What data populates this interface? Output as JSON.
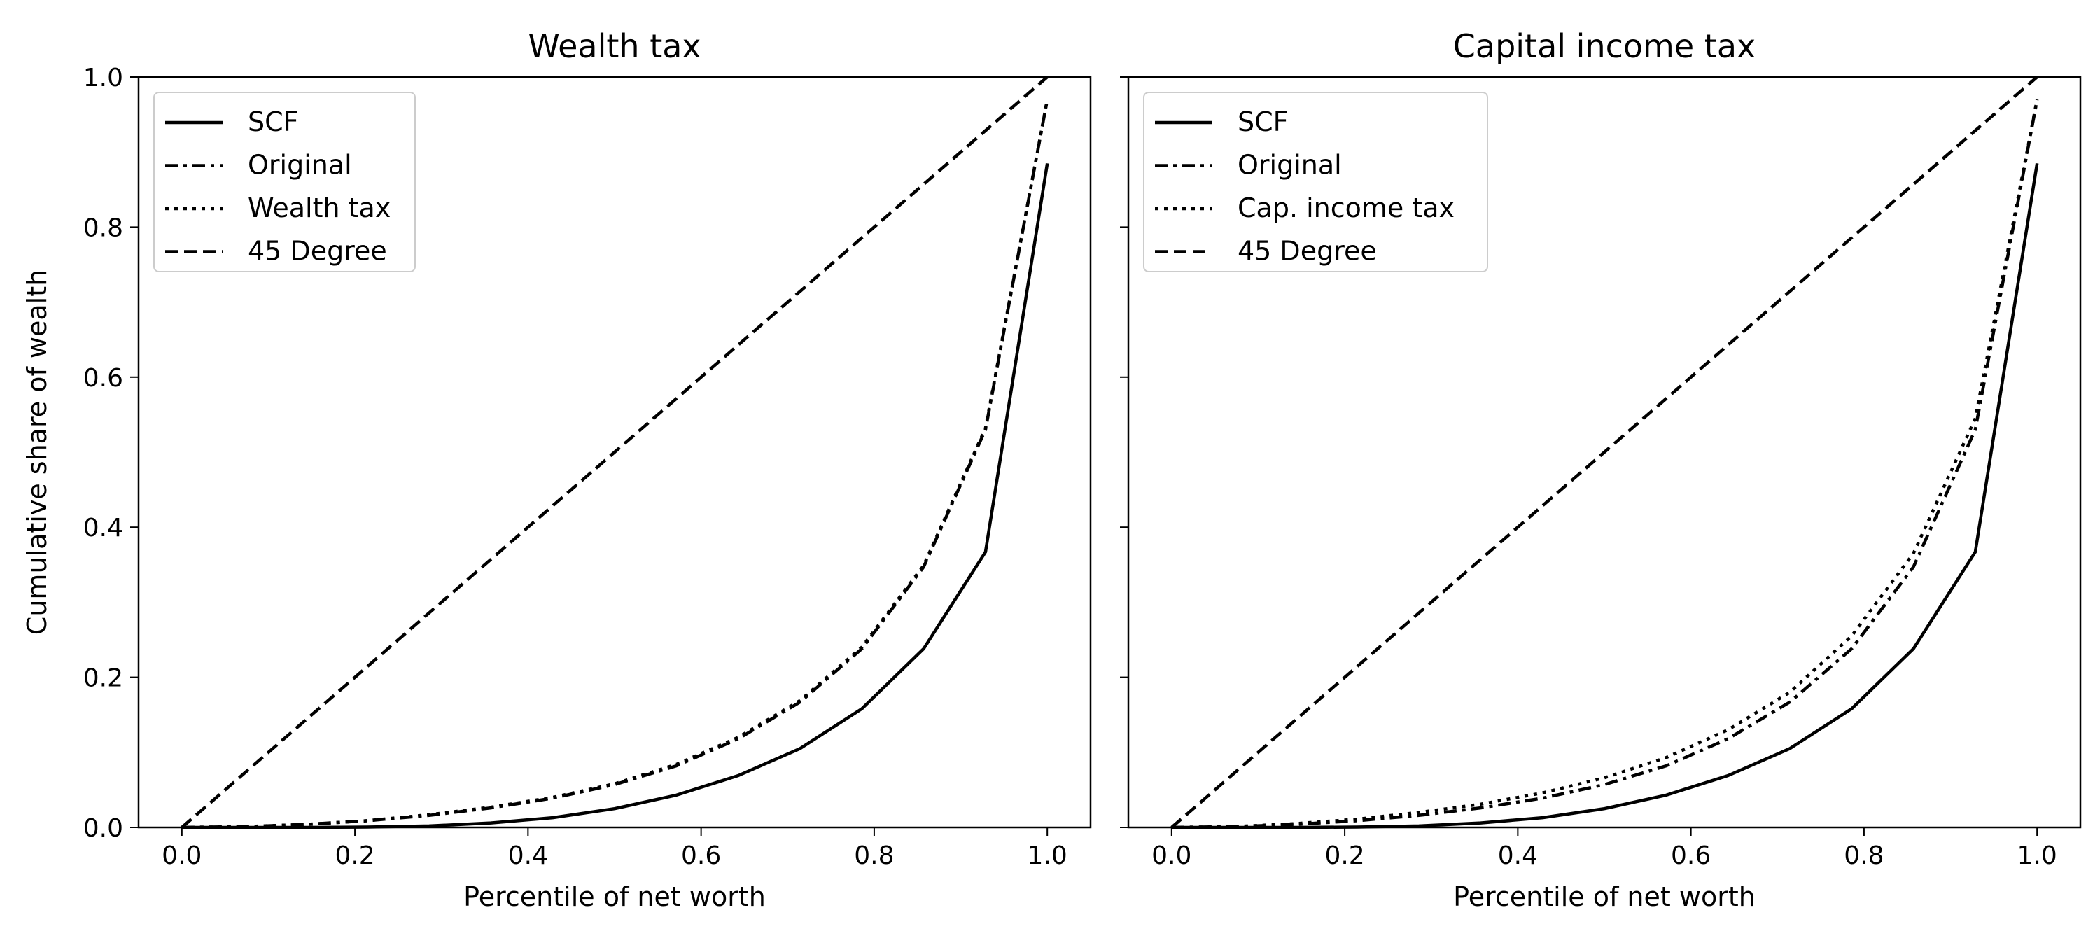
{
  "chart_data": [
    {
      "type": "line",
      "title": "Wealth tax",
      "xlabel": "Percentile of net worth",
      "ylabel": "Cumulative share of wealth",
      "xlim": [
        -0.05,
        1.05
      ],
      "ylim": [
        0,
        1
      ],
      "x_ticks": [
        "0.0",
        "0.2",
        "0.4",
        "0.6",
        "0.8",
        "1.0"
      ],
      "y_ticks": [
        "0.0",
        "0.2",
        "0.4",
        "0.6",
        "0.8",
        "1.0"
      ],
      "legend_position": "top-left",
      "x": [
        0,
        0.0714,
        0.1429,
        0.2143,
        0.2857,
        0.3571,
        0.4286,
        0.5,
        0.5714,
        0.6429,
        0.7143,
        0.7857,
        0.8571,
        0.9286,
        1.0
      ],
      "series": [
        {
          "name": "SCF",
          "style": "solid",
          "values": [
            0,
            0,
            0,
            0.0005,
            0.002,
            0.006,
            0.013,
            0.025,
            0.043,
            0.069,
            0.105,
            0.158,
            0.238,
            0.367,
            0.885
          ]
        },
        {
          "name": "Original",
          "style": "dashdot",
          "values": [
            0,
            0.001,
            0.004,
            0.009,
            0.016,
            0.026,
            0.039,
            0.057,
            0.082,
            0.118,
            0.167,
            0.238,
            0.347,
            0.53,
            0.97
          ]
        },
        {
          "name": "Wealth tax",
          "style": "dotted",
          "values": [
            0,
            0.001,
            0.004,
            0.009,
            0.017,
            0.027,
            0.04,
            0.058,
            0.084,
            0.12,
            0.169,
            0.24,
            0.349,
            0.532,
            0.97
          ]
        },
        {
          "name": "45 Degree",
          "style": "dashed",
          "values": [
            0,
            0.0714,
            0.1429,
            0.2143,
            0.2857,
            0.3571,
            0.4286,
            0.5,
            0.5714,
            0.6429,
            0.7143,
            0.7857,
            0.8571,
            0.9286,
            1.0
          ]
        }
      ]
    },
    {
      "type": "line",
      "title": "Capital income tax",
      "xlabel": "Percentile of net worth",
      "ylabel": "",
      "xlim": [
        -0.05,
        1.05
      ],
      "ylim": [
        0,
        1
      ],
      "x_ticks": [
        "0.0",
        "0.2",
        "0.4",
        "0.6",
        "0.8",
        "1.0"
      ],
      "y_ticks": [],
      "legend_position": "top-left",
      "x": [
        0,
        0.0714,
        0.1429,
        0.2143,
        0.2857,
        0.3571,
        0.4286,
        0.5,
        0.5714,
        0.6429,
        0.7143,
        0.7857,
        0.8571,
        0.9286,
        1.0
      ],
      "series": [
        {
          "name": "SCF",
          "style": "solid",
          "values": [
            0,
            0,
            0,
            0.0005,
            0.002,
            0.006,
            0.013,
            0.025,
            0.043,
            0.069,
            0.105,
            0.158,
            0.238,
            0.367,
            0.885
          ]
        },
        {
          "name": "Original",
          "style": "dashdot",
          "values": [
            0,
            0.001,
            0.004,
            0.009,
            0.016,
            0.026,
            0.039,
            0.057,
            0.082,
            0.118,
            0.167,
            0.238,
            0.347,
            0.53,
            0.97
          ]
        },
        {
          "name": "Cap. income tax",
          "style": "dotted",
          "values": [
            0,
            0.001,
            0.005,
            0.011,
            0.02,
            0.031,
            0.046,
            0.066,
            0.093,
            0.13,
            0.18,
            0.255,
            0.365,
            0.545,
            0.97
          ]
        },
        {
          "name": "45 Degree",
          "style": "dashed",
          "values": [
            0,
            0.0714,
            0.1429,
            0.2143,
            0.2857,
            0.3571,
            0.4286,
            0.5,
            0.5714,
            0.6429,
            0.7143,
            0.7857,
            0.8571,
            0.9286,
            1.0
          ]
        }
      ]
    }
  ]
}
